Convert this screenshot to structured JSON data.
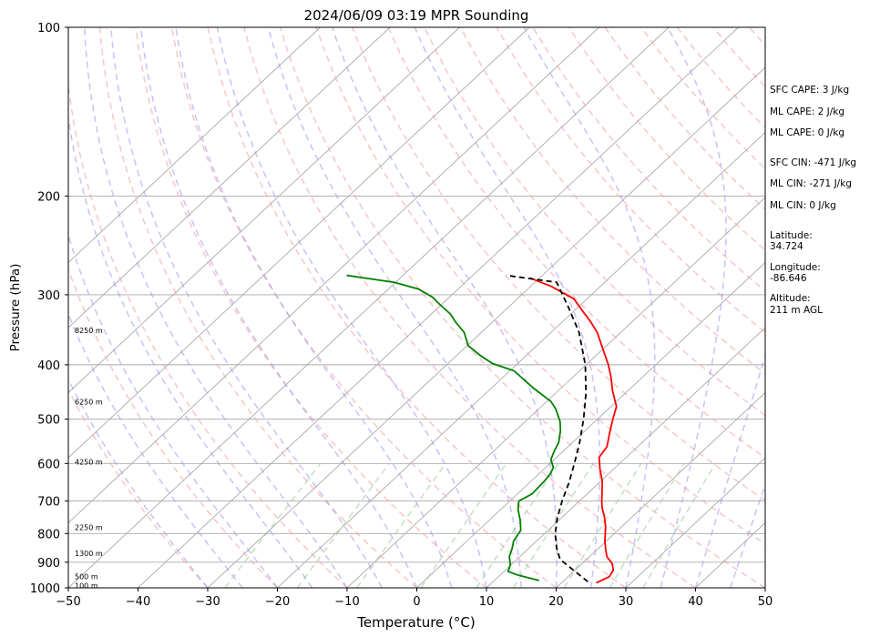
{
  "chart_data": {
    "type": "line",
    "title": "2024/06/09 03:19 MPR Sounding",
    "xlabel": "Temperature (°C)",
    "ylabel": "Pressure (hPa)",
    "xlim": [
      -50,
      50
    ],
    "ylim": [
      1000,
      100
    ],
    "y_scale": "log",
    "x_ticks": [
      "−50",
      "−40",
      "−30",
      "−20",
      "−10",
      "0",
      "10",
      "20",
      "30",
      "40",
      "50"
    ],
    "y_ticks": [
      "100",
      "200",
      "300",
      "400",
      "500",
      "600",
      "700",
      "800",
      "900",
      "1000"
    ],
    "grid": "horizontal isobars and skewed isotherms",
    "background_lines": {
      "dry_adiabats": "dashed, pink",
      "moist_adiabats": "dashed, light blue",
      "mixing_ratio_lines": "dashed, light green"
    },
    "height_labels": [
      {
        "pressure": 990,
        "text": "100 m"
      },
      {
        "pressure": 955,
        "text": "500 m"
      },
      {
        "pressure": 868,
        "text": "1300 m"
      },
      {
        "pressure": 780,
        "text": "2250 m"
      },
      {
        "pressure": 596,
        "text": "4250 m"
      },
      {
        "pressure": 466,
        "text": "6250 m"
      },
      {
        "pressure": 347,
        "text": "8250 m"
      }
    ],
    "annotations": [
      "SFC CAPE: 3 J/kg",
      "ML CAPE: 2 J/kg",
      "ML CAPE: 0 J/kg",
      "SFC CIN: -471 J/kg",
      "ML CIN: -271 J/kg",
      "ML CIN: 0 J/kg",
      "Latitude:",
      "34.724",
      "Longitude:",
      "-86.646",
      "Altitude:",
      "211 m AGL"
    ],
    "series": [
      {
        "color": "#ff0000",
        "dash": "solid",
        "points": [
          [
            25.0,
            980
          ],
          [
            25.9,
            955
          ],
          [
            25.5,
            930
          ],
          [
            24.3,
            905
          ],
          [
            22.5,
            880
          ],
          [
            21.0,
            850
          ],
          [
            19.8,
            825
          ],
          [
            18.7,
            800
          ],
          [
            17.8,
            780
          ],
          [
            15.9,
            745
          ],
          [
            14.3,
            720
          ],
          [
            13.2,
            700
          ],
          [
            11.6,
            670
          ],
          [
            10.2,
            645
          ],
          [
            8.1,
            615
          ],
          [
            6.1,
            585
          ],
          [
            5.6,
            560
          ],
          [
            3.9,
            530
          ],
          [
            2.2,
            500
          ],
          [
            0.8,
            475
          ],
          [
            -2.2,
            445
          ],
          [
            -4.6,
            420
          ],
          [
            -6.8,
            400
          ],
          [
            -10.0,
            375
          ],
          [
            -13.4,
            350
          ],
          [
            -16.0,
            335
          ],
          [
            -18.9,
            320
          ],
          [
            -21.9,
            305
          ],
          [
            -27.0,
            290
          ],
          [
            -31.4,
            280
          ]
        ]
      },
      {
        "color": "#008000",
        "dash": "solid",
        "points": [
          [
            16.4,
            970
          ],
          [
            12.4,
            948
          ],
          [
            10.6,
            935
          ],
          [
            9.9,
            910
          ],
          [
            8.5,
            880
          ],
          [
            7.6,
            850
          ],
          [
            6.7,
            825
          ],
          [
            6.1,
            790
          ],
          [
            4.6,
            760
          ],
          [
            2.5,
            725
          ],
          [
            1.3,
            700
          ],
          [
            2.1,
            680
          ],
          [
            2.0,
            660
          ],
          [
            1.9,
            645
          ],
          [
            1.6,
            625
          ],
          [
            1.1,
            610
          ],
          [
            -0.5,
            590
          ],
          [
            -1.3,
            570
          ],
          [
            -2.0,
            550
          ],
          [
            -3.5,
            525
          ],
          [
            -5.0,
            505
          ],
          [
            -7.5,
            480
          ],
          [
            -9.4,
            465
          ],
          [
            -14.0,
            440
          ],
          [
            -19.4,
            410
          ],
          [
            -23.6,
            398
          ],
          [
            -26.6,
            385
          ],
          [
            -29.8,
            370
          ],
          [
            -32.5,
            350
          ],
          [
            -35.4,
            335
          ],
          [
            -37.2,
            325
          ],
          [
            -40.3,
            312
          ],
          [
            -42.4,
            303
          ],
          [
            -45.7,
            293
          ],
          [
            -50.2,
            285
          ],
          [
            -58.1,
            277
          ]
        ]
      },
      {
        "color": "#000000",
        "dash": "dashed",
        "points": [
          [
            23.6,
            975
          ],
          [
            16.2,
            890
          ],
          [
            14.0,
            850
          ],
          [
            11.5,
            800
          ],
          [
            9.4,
            750
          ],
          [
            7.5,
            700
          ],
          [
            5.7,
            650
          ],
          [
            3.5,
            600
          ],
          [
            1.0,
            550
          ],
          [
            -2.0,
            500
          ],
          [
            -5.6,
            450
          ],
          [
            -10.1,
            400
          ],
          [
            -16.0,
            350
          ],
          [
            -21.5,
            315
          ],
          [
            -26.9,
            285
          ],
          [
            -35.2,
            277
          ]
        ]
      }
    ]
  }
}
